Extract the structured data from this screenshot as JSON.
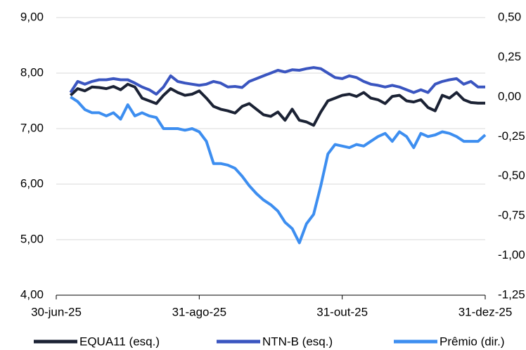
{
  "chart_data": {
    "type": "line",
    "categories": [
      "30-jun-25",
      null,
      null,
      null,
      null,
      null,
      null,
      null,
      null,
      null,
      null,
      null,
      null,
      null,
      null,
      null,
      null,
      null,
      null,
      null,
      "31-ago-25",
      null,
      null,
      null,
      null,
      null,
      null,
      null,
      null,
      null,
      null,
      null,
      null,
      null,
      null,
      null,
      null,
      null,
      null,
      null,
      "31-out-25",
      null,
      null,
      null,
      null,
      null,
      null,
      null,
      null,
      null,
      null,
      null,
      null,
      null,
      null,
      null,
      null,
      null,
      null,
      null,
      "31-dez-25"
    ],
    "series": [
      {
        "name": "EQUA11 (esq.)",
        "color": "#1b2234",
        "values": [
          null,
          null,
          7.6,
          7.72,
          7.68,
          7.75,
          7.74,
          7.72,
          7.76,
          7.7,
          7.8,
          7.75,
          7.55,
          7.5,
          7.45,
          7.6,
          7.72,
          7.65,
          7.6,
          7.62,
          7.68,
          7.55,
          7.4,
          7.35,
          7.32,
          7.28,
          7.4,
          7.45,
          7.35,
          7.25,
          7.22,
          7.3,
          7.15,
          7.35,
          7.15,
          7.12,
          7.06,
          7.3,
          7.5,
          7.55,
          7.6,
          7.62,
          7.58,
          7.65,
          7.55,
          7.52,
          7.45,
          7.58,
          7.6,
          7.5,
          7.48,
          7.52,
          7.38,
          7.32,
          7.6,
          7.55,
          7.65,
          7.52,
          7.47,
          7.46,
          7.46
        ]
      },
      {
        "name": "NTN-B (esq.)",
        "color": "#3a55c0",
        "values": [
          null,
          null,
          7.65,
          7.85,
          7.8,
          7.85,
          7.88,
          7.88,
          7.9,
          7.88,
          7.88,
          7.82,
          7.75,
          7.7,
          7.62,
          7.75,
          7.95,
          7.85,
          7.82,
          7.8,
          7.78,
          7.8,
          7.85,
          7.82,
          7.75,
          7.76,
          7.74,
          7.85,
          7.9,
          7.95,
          8.0,
          8.05,
          8.02,
          8.06,
          8.05,
          8.08,
          8.1,
          8.08,
          8.0,
          7.92,
          7.9,
          7.95,
          7.92,
          7.85,
          7.8,
          7.78,
          7.75,
          7.78,
          7.75,
          7.7,
          7.65,
          7.7,
          7.65,
          7.8,
          7.85,
          7.88,
          7.9,
          7.8,
          7.85,
          7.75,
          7.75
        ]
      },
      {
        "name": "Prêmio (dir.)",
        "color": "#3d8ef0",
        "axis": "y2",
        "values": [
          null,
          null,
          0.0,
          -0.03,
          -0.08,
          -0.1,
          -0.1,
          -0.12,
          -0.1,
          -0.14,
          -0.05,
          -0.12,
          -0.1,
          -0.12,
          -0.13,
          -0.2,
          -0.2,
          -0.2,
          -0.21,
          -0.2,
          -0.22,
          -0.28,
          -0.42,
          -0.42,
          -0.43,
          -0.45,
          -0.5,
          -0.56,
          -0.61,
          -0.65,
          -0.68,
          -0.72,
          -0.79,
          -0.83,
          -0.92,
          -0.8,
          -0.74,
          -0.56,
          -0.36,
          -0.3,
          -0.31,
          -0.32,
          -0.3,
          -0.31,
          -0.28,
          -0.25,
          -0.23,
          -0.28,
          -0.22,
          -0.25,
          -0.32,
          -0.23,
          -0.25,
          -0.24,
          -0.22,
          -0.23,
          -0.25,
          -0.28,
          -0.28,
          -0.28,
          -0.24
        ]
      }
    ],
    "ylim": [
      4,
      9
    ],
    "yticks": [
      {
        "value": 4,
        "label": "4,00"
      },
      {
        "value": 5,
        "label": "5,00"
      },
      {
        "value": 6,
        "label": "6,00"
      },
      {
        "value": 7,
        "label": "7,00"
      },
      {
        "value": 8,
        "label": "8,00"
      },
      {
        "value": 9,
        "label": "9,00"
      }
    ],
    "y2lim": [
      -1.25,
      0.5
    ],
    "y2ticks": [
      {
        "value": -1.25,
        "label": "-1,25"
      },
      {
        "value": -1,
        "label": "-1,00"
      },
      {
        "value": -0.75,
        "label": "-0,75"
      },
      {
        "value": -0.5,
        "label": "-0,50"
      },
      {
        "value": -0.25,
        "label": "-0,25"
      },
      {
        "value": 0,
        "label": "0,00"
      },
      {
        "value": 0.25,
        "label": "0,25"
      },
      {
        "value": 0.5,
        "label": "0,50"
      }
    ],
    "grid": true,
    "legend": "bottom"
  }
}
